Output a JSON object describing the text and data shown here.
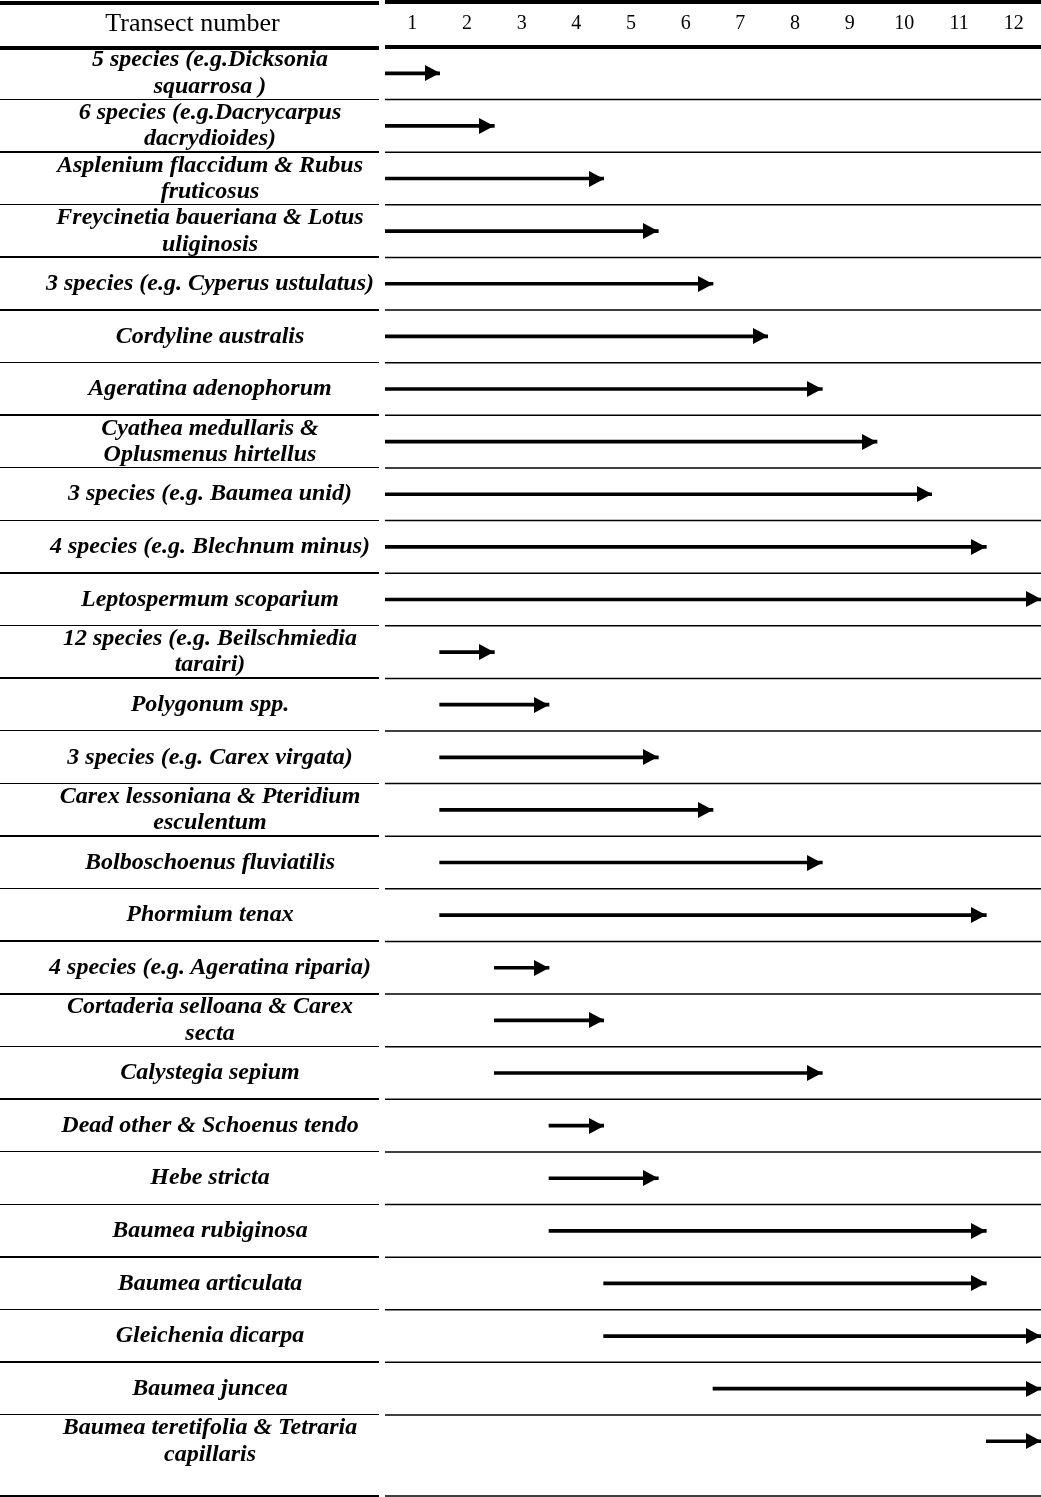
{
  "chart_data": {
    "type": "bar",
    "orientation": "horizontal",
    "xlabel": "Transect number",
    "categories": [
      "5 species (e.g.Dicksonia squarrosa )",
      "6 species (e.g.Dacrycarpus dacrydioides)",
      "Asplenium flaccidum & Rubus fruticosus",
      "Freycinetia baueriana & Lotus uliginosis",
      "3 species (e.g. Cyperus ustulatus)",
      "Cordyline australis",
      "Ageratina adenophorum",
      "Cyathea medullaris & Oplusmenus hirtellus",
      "3 species (e.g. Baumea unid)",
      "4 species (e.g. Blechnum minus)",
      "Leptospermum scoparium",
      "12 species (e.g. Beilschmiedia tarairi)",
      "Polygonum spp.",
      "3 species (e.g. Carex virgata)",
      "Carex lessoniana & Pteridium esculentum",
      "Bolboschoenus fluviatilis",
      "Phormium tenax",
      "4 species (e.g. Ageratina riparia)",
      "Cortaderia selloana & Carex secta",
      "Calystegia sepium",
      "Dead other & Schoenus tendo",
      "Hebe stricta",
      "Baumea rubiginosa",
      "Baumea articulata",
      "Gleichenia dicarpa",
      "Baumea juncea",
      "Baumea teretifolia & Tetraria capillaris"
    ],
    "base": [
      0.5,
      0.5,
      0.5,
      0.5,
      0.5,
      0.5,
      0.5,
      0.5,
      0.5,
      0.5,
      0.5,
      1.5,
      1.5,
      1.5,
      1.5,
      1.5,
      1.5,
      2.5,
      2.5,
      2.5,
      3.5,
      3.5,
      3.5,
      4.5,
      4.5,
      6.5,
      11.5
    ],
    "values": [
      1,
      2,
      4,
      5,
      6,
      7,
      8,
      9,
      10,
      11,
      12,
      1,
      2,
      4,
      5,
      7,
      10,
      1,
      2,
      6,
      1,
      2,
      8,
      7,
      8,
      6,
      1
    ],
    "color": "#000000",
    "xlim": [
      0.5,
      12.5
    ],
    "xticks": [
      1,
      2,
      3,
      4,
      5,
      6,
      7,
      8,
      9,
      10,
      11,
      12
    ],
    "grid": "y",
    "legend": false
  }
}
